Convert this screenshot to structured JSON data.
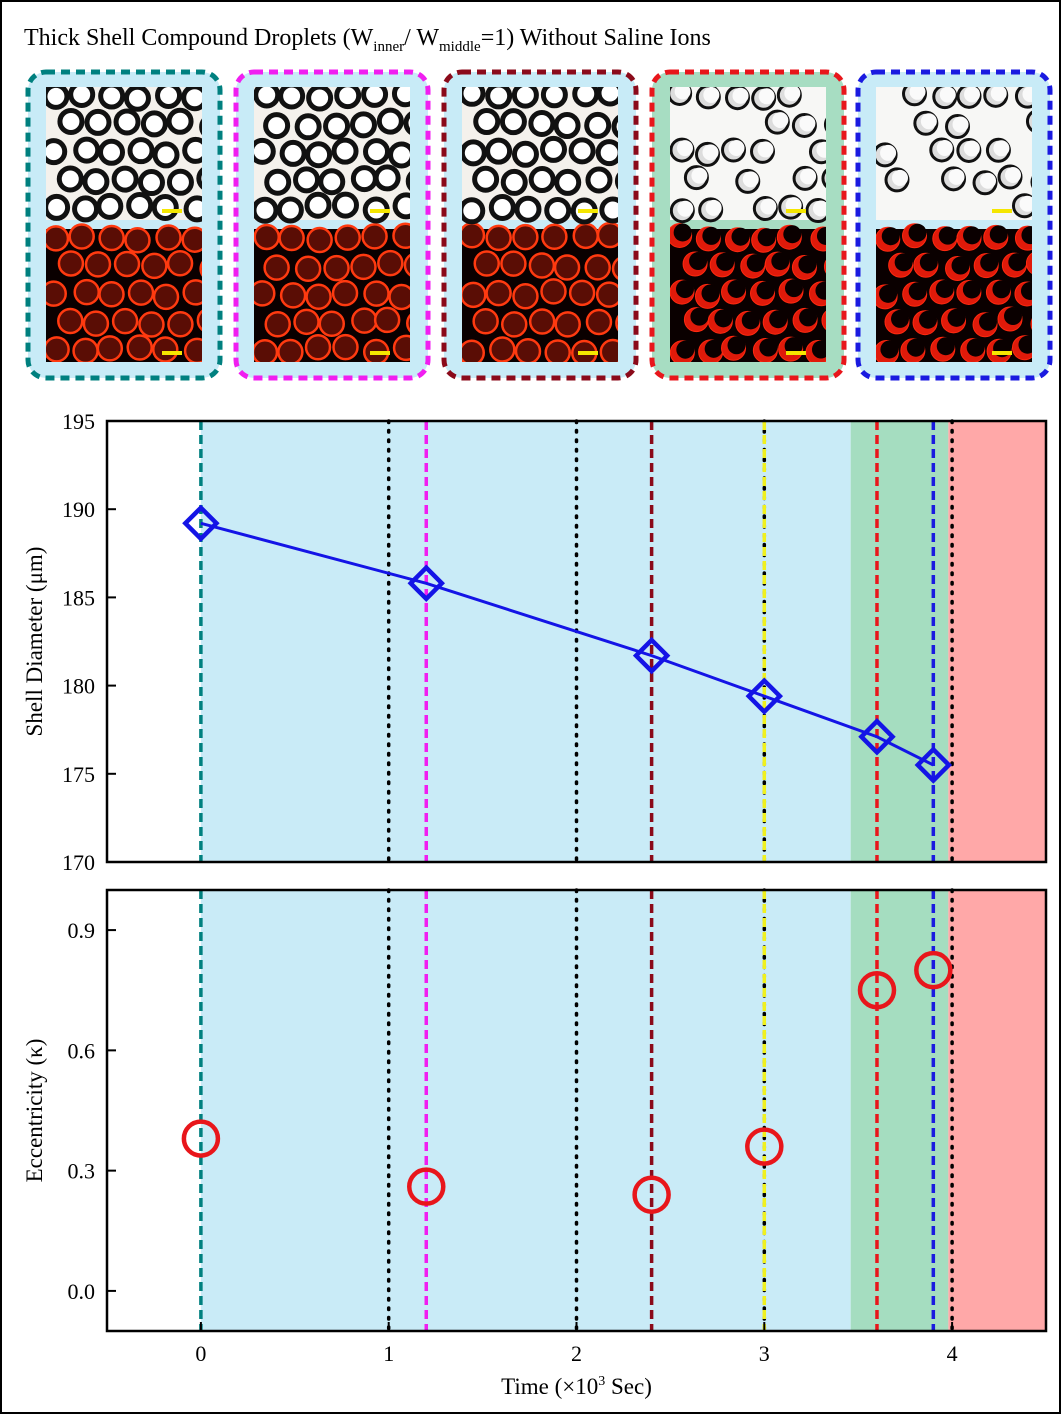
{
  "figure": {
    "title": [
      "Thick Shell Compound Droplets (W",
      "inner",
      "/ W",
      "middle",
      "=1) Without Saline Ions"
    ],
    "panels": [
      {
        "border_color": "#00807f",
        "background": "#c8ebf7"
      },
      {
        "border_color": "#f01ef0",
        "background": "#c8ebf7"
      },
      {
        "border_color": "#8b0a1a",
        "background": "#c8ebf7"
      },
      {
        "border_color": "#e8161b",
        "background": "#a7ddc2"
      },
      {
        "border_color": "#1a1ae0",
        "background": "#c8ebf7"
      }
    ]
  },
  "chart_data": [
    {
      "type": "line",
      "ylabel": "Shell Diameter (μm)",
      "x": [
        0,
        1.2,
        2.4,
        3.0,
        3.6,
        3.9
      ],
      "series": [
        {
          "color": "#1414e6",
          "values": [
            189.2,
            185.8,
            181.7,
            179.4,
            177.1,
            175.5
          ]
        }
      ],
      "xlim": [
        -0.5,
        4.5
      ],
      "ylim": [
        170,
        195
      ],
      "yticks": [
        170,
        175,
        180,
        185,
        190,
        195
      ],
      "regions": [
        {
          "x0": 0,
          "x1": 3.46,
          "color": "#c9ebf7"
        },
        {
          "x0": 3.46,
          "x1": 3.98,
          "color": "#a5ddc0"
        },
        {
          "x0": 3.98,
          "x1": 4.5,
          "color": "#ffa8a8"
        }
      ],
      "reference_lines": [
        {
          "x": 1,
          "color": "#000000",
          "style": "dotted"
        },
        {
          "x": 2,
          "color": "#000000",
          "style": "dotted"
        },
        {
          "x": 3,
          "color": "#000000",
          "style": "dotted"
        },
        {
          "x": 4,
          "color": "#000000",
          "style": "dotted"
        },
        {
          "x": 0,
          "color": "#00807f",
          "style": "dashed"
        },
        {
          "x": 1.2,
          "color": "#f01ef0",
          "style": "dashed"
        },
        {
          "x": 2.4,
          "color": "#8b0a1a",
          "style": "dashed"
        },
        {
          "x": 3.0,
          "color": "#f0f01e",
          "style": "dashed"
        },
        {
          "x": 3.6,
          "color": "#e8161b",
          "style": "dashed"
        },
        {
          "x": 3.9,
          "color": "#1a1ae0",
          "style": "dashed"
        }
      ]
    },
    {
      "type": "scatter",
      "ylabel": "Eccentricity (κ)",
      "xlabel": [
        "Time (×10",
        "3",
        " Sec)"
      ],
      "x": [
        0,
        1.2,
        2.4,
        3.0,
        3.6,
        3.9
      ],
      "series": [
        {
          "color": "#e8161b",
          "values": [
            0.38,
            0.26,
            0.24,
            0.36,
            0.75,
            0.8
          ]
        }
      ],
      "xlim": [
        -0.5,
        4.5
      ],
      "xticks": [
        0,
        1,
        2,
        3,
        4
      ],
      "ylim": [
        -0.1,
        1.0
      ],
      "yticks": [
        {
          "value": 0,
          "label": "0.0"
        },
        0.3,
        0.6,
        0.9
      ],
      "regions": [
        {
          "x0": 0,
          "x1": 3.46,
          "color": "#c9ebf7"
        },
        {
          "x0": 3.46,
          "x1": 3.98,
          "color": "#a5ddc0"
        },
        {
          "x0": 3.98,
          "x1": 4.5,
          "color": "#ffa8a8"
        }
      ],
      "reference_lines": [
        {
          "x": 1,
          "color": "#000000",
          "style": "dotted"
        },
        {
          "x": 2,
          "color": "#000000",
          "style": "dotted"
        },
        {
          "x": 3,
          "color": "#000000",
          "style": "dotted"
        },
        {
          "x": 4,
          "color": "#000000",
          "style": "dotted"
        },
        {
          "x": 0,
          "color": "#00807f",
          "style": "dashed"
        },
        {
          "x": 1.2,
          "color": "#f01ef0",
          "style": "dashed"
        },
        {
          "x": 2.4,
          "color": "#8b0a1a",
          "style": "dashed"
        },
        {
          "x": 3.0,
          "color": "#f0f01e",
          "style": "dashed"
        },
        {
          "x": 3.6,
          "color": "#e8161b",
          "style": "dashed"
        },
        {
          "x": 3.9,
          "color": "#1a1ae0",
          "style": "dashed"
        }
      ]
    }
  ]
}
